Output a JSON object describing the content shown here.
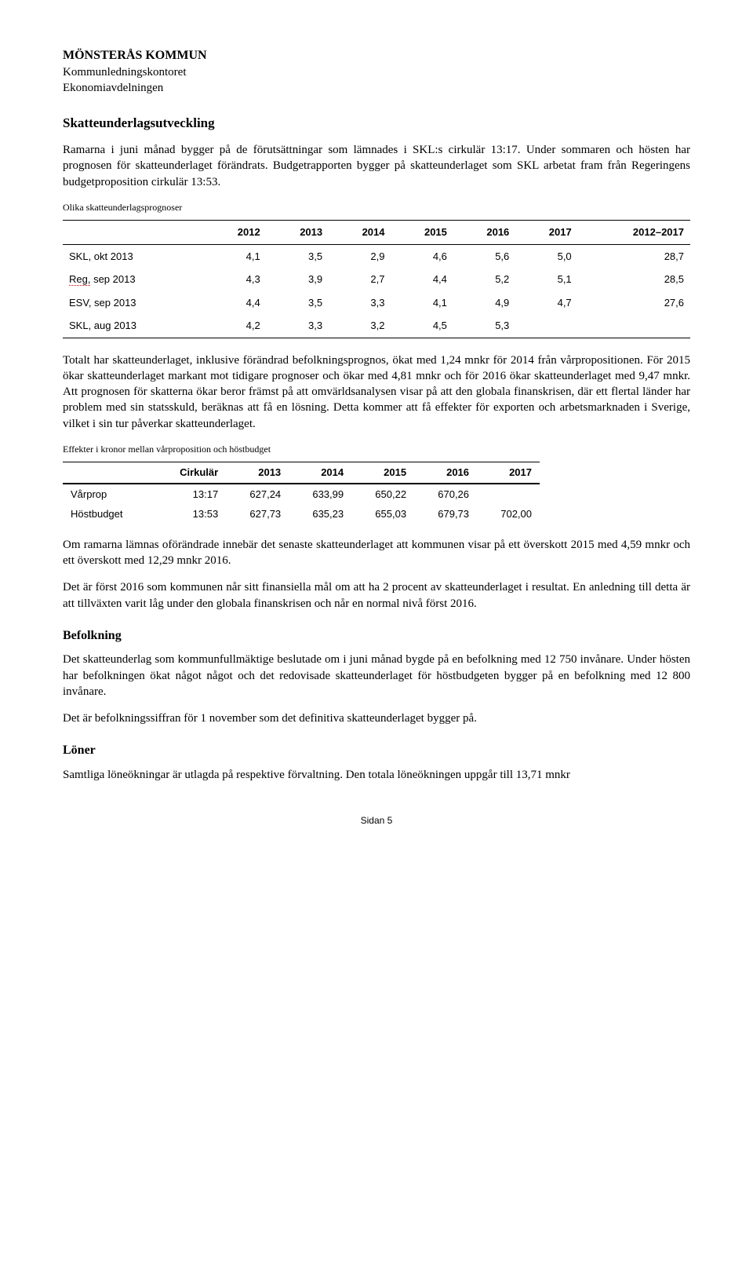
{
  "header": {
    "org": "MÖNSTERÅS KOMMUN",
    "dept1": "Kommunledningskontoret",
    "dept2": "Ekonomiavdelningen"
  },
  "section1": {
    "title": "Skatteunderlagsutveckling",
    "p1": "Ramarna i juni månad bygger på de förutsättningar som lämnades i SKL:s cirkulär 13:17. Under sommaren och hösten har prognosen för skatteunderlaget förändrats. Budgetrapporten bygger på skatteunderlaget som SKL arbetat fram från Regeringens budgetproposition cirkulär 13:53.",
    "table_label": "Olika skatteunderlagsprognoser"
  },
  "prognosis_table": {
    "columns": [
      "",
      "2012",
      "2013",
      "2014",
      "2015",
      "2016",
      "2017",
      "2012–2017"
    ],
    "rows": [
      [
        "SKL, okt 2013",
        "4,1",
        "3,5",
        "2,9",
        "4,6",
        "5,6",
        "5,0",
        "28,7"
      ],
      [
        "Reg, sep 2013",
        "4,3",
        "3,9",
        "2,7",
        "4,4",
        "5,2",
        "5,1",
        "28,5"
      ],
      [
        "ESV, sep 2013",
        "4,4",
        "3,5",
        "3,3",
        "4,1",
        "4,9",
        "4,7",
        "27,6"
      ],
      [
        "SKL, aug 2013",
        "4,2",
        "3,3",
        "3,2",
        "4,5",
        "5,3",
        "",
        ""
      ]
    ]
  },
  "para_block": {
    "p2": "Totalt har skatteunderlaget, inklusive förändrad befolkningsprognos, ökat med 1,24 mnkr för 2014 från vårpropositionen. För 2015 ökar skatteunderlaget markant mot tidigare prognoser och ökar med 4,81 mnkr och för 2016 ökar skatteunderlaget med 9,47 mnkr. Att prognosen för skatterna ökar beror främst på att omvärldsanalysen visar på att den globala finanskrisen, där ett flertal länder har problem med sin statsskuld, beräknas att få en lösning. Detta kommer att få effekter för exporten och arbetsmarknaden i Sverige, vilket i sin tur påverkar skatteunderlaget."
  },
  "effects": {
    "label": "Effekter i kronor mellan vårproposition och höstbudget",
    "columns": [
      "",
      "Cirkulär",
      "2013",
      "2014",
      "2015",
      "2016",
      "2017"
    ],
    "rows": [
      [
        "Vårprop",
        "13:17",
        "627,24",
        "633,99",
        "650,22",
        "670,26",
        ""
      ],
      [
        "Höstbudget",
        "13:53",
        "627,73",
        "635,23",
        "655,03",
        "679,73",
        "702,00"
      ]
    ]
  },
  "para_block2": {
    "p3": "Om ramarna lämnas oförändrade innebär det senaste skatteunderlaget att kommunen visar på ett överskott 2015 med 4,59 mnkr och ett överskott med 12,29 mnkr 2016.",
    "p4": "Det är först 2016 som kommunen når sitt finansiella mål om att ha 2 procent av skatteunderlaget i resultat. En anledning till detta är att tillväxten varit låg under den globala finanskrisen och når en normal nivå först 2016."
  },
  "befolkning": {
    "title": "Befolkning",
    "p5": "Det skatteunderlag som kommunfullmäktige beslutade om i juni månad bygde på en befolkning med 12 750 invånare. Under hösten har befolkningen ökat något något och det redovisade skatteunderlaget för höstbudgeten bygger på en befolkning med 12 800 invånare.",
    "p6": "Det är befolkningssiffran för 1 november som det definitiva skatteunderlaget bygger på."
  },
  "loner": {
    "title": "Löner",
    "p7": "Samtliga löneökningar är utlagda på respektive förvaltning. Den totala löneökningen uppgår till 13,71 mnkr"
  },
  "footer": "Sidan 5"
}
